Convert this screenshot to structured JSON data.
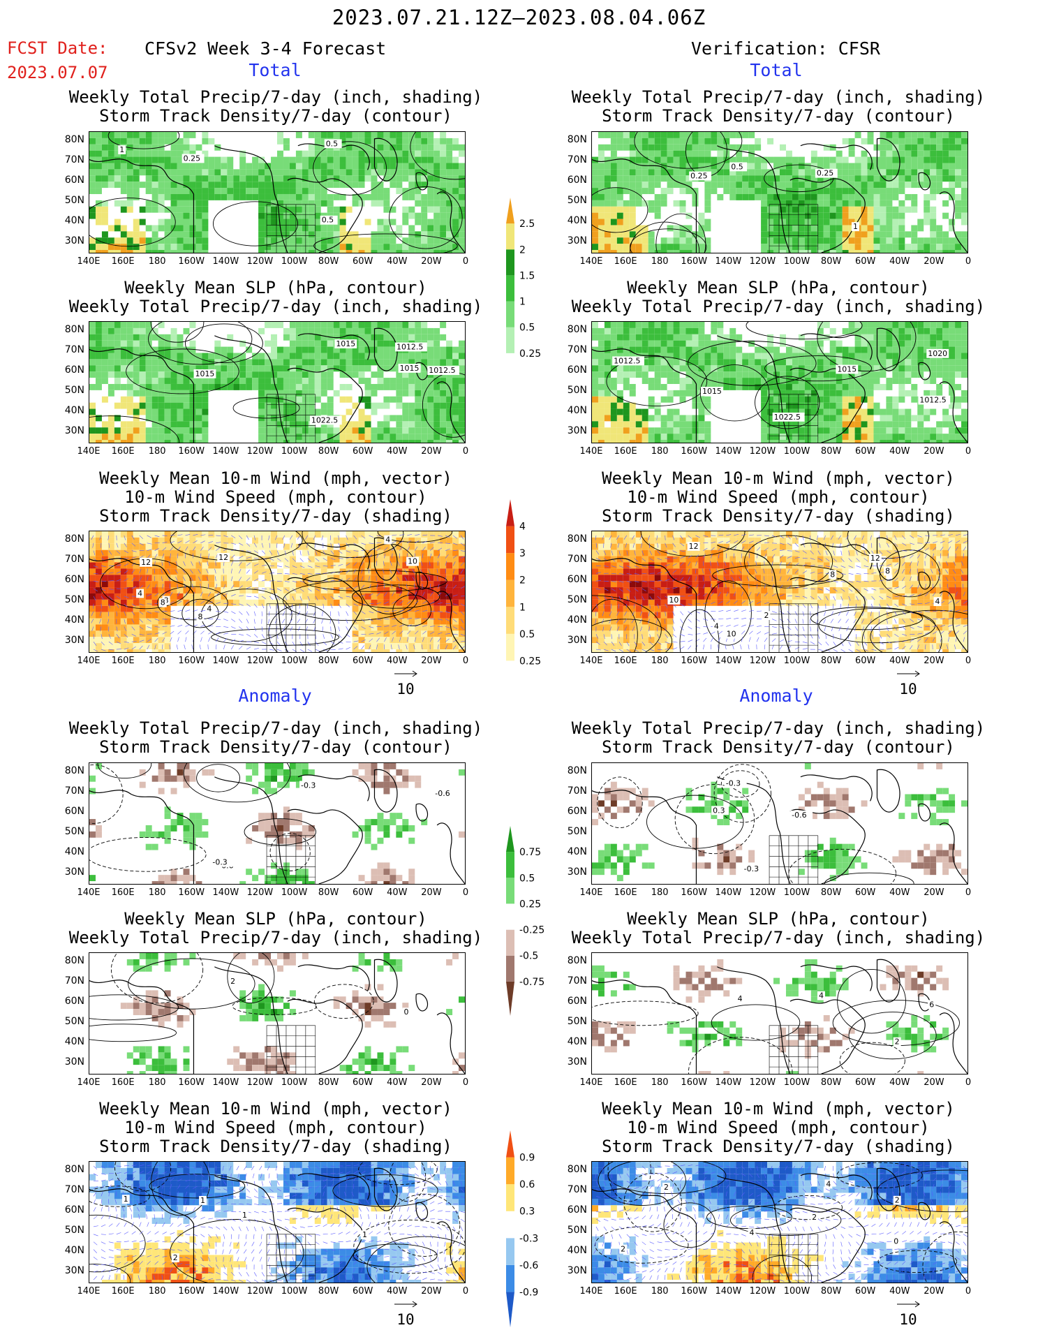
{
  "header": {
    "date_range": "2023.07.21.12Z–2023.08.04.06Z",
    "fcst_label": "FCST Date:",
    "fcst_date": "2023.07.07",
    "left_title": "CFSv2 Week 3-4 Forecast",
    "right_title": "Verification: CFSR",
    "total_label": "Total",
    "anomaly_label": "Anomaly"
  },
  "panel_titles": {
    "precip_storm": "Weekly Total Precip/7-day (inch, shading)\nStorm Track Density/7-day (contour)",
    "slp_precip": "Weekly Mean SLP (hPa, contour)\nWeekly Total Precip/7-day (inch, shading)",
    "wind_storm": "Weekly Mean 10-m Wind (mph, vector)\n10-m Wind Speed (mph, contour)\nStorm Track Density/7-day (shading)"
  },
  "axes": {
    "lat_ticks": [
      "80N",
      "70N",
      "60N",
      "50N",
      "40N",
      "30N"
    ],
    "lon_ticks": [
      "140E",
      "160E",
      "180",
      "160W",
      "140W",
      "120W",
      "100W",
      "80W",
      "60W",
      "40W",
      "20W",
      "0"
    ]
  },
  "wind_ref_label": "10",
  "colors": {
    "precip": [
      "#b4f0b4",
      "#78dc78",
      "#3cbe3c",
      "#1e961e",
      "#f0e678",
      "#f0a01e",
      "#e03c1e"
    ],
    "storm": [
      "#fff5b4",
      "#ffdc78",
      "#ffb43c",
      "#ff8c14",
      "#f05014",
      "#c81e14",
      "#8c0a0a"
    ],
    "anom_precip": [
      "#6e3c28",
      "#a0786e",
      "#dcbeb4",
      "#ffffff",
      "#78dc78",
      "#3cbe3c",
      "#1e961e"
    ],
    "anom_storm": [
      "#1e5ac8",
      "#3c8ce6",
      "#96c8f0",
      "#ffffff",
      "#ffe678",
      "#ffaa28",
      "#f05014"
    ]
  },
  "chart_data": [
    {
      "id": "row1-left",
      "type": "map",
      "title": "Weekly Total Precip/7-day (inch, shading) / Storm Track Density/7-day (contour)",
      "contour_labels": [
        "0.25",
        "0.5",
        "1",
        "0.5"
      ],
      "colorbar": {
        "levels": [
          "0.25",
          "0.5",
          "1",
          "1.5",
          "2",
          "2.5"
        ]
      }
    },
    {
      "id": "row1-right",
      "type": "map",
      "title": "Weekly Total Precip/7-day (inch, shading) / Storm Track Density/7-day (contour)",
      "contour_labels": [
        "0.25",
        "0.25",
        "0.5",
        "1"
      ]
    },
    {
      "id": "row2-left",
      "type": "map",
      "title": "Weekly Mean SLP (hPa, contour) / Weekly Total Precip/7-day (inch, shading)",
      "contour_labels": [
        "1015",
        "1012.5",
        "1015",
        "1012.5",
        "1015",
        "1022.5"
      ]
    },
    {
      "id": "row2-right",
      "type": "map",
      "title": "Weekly Mean SLP (hPa, contour) / Weekly Total Precip/7-day (inch, shading)",
      "contour_labels": [
        "1015",
        "1012.5",
        "1012.5",
        "1020",
        "1015",
        "1022.5"
      ]
    },
    {
      "id": "row3-left",
      "type": "map",
      "title": "Weekly Mean 10-m Wind / 10-m Wind Speed / Storm Track Density",
      "contour_labels": [
        "4",
        "8",
        "12",
        "4",
        "8",
        "10",
        "8",
        "4",
        "12"
      ],
      "colorbar": {
        "levels": [
          "0.25",
          "0.5",
          "1",
          "2",
          "3",
          "4"
        ]
      }
    },
    {
      "id": "row3-right",
      "type": "map",
      "title": "Weekly Mean 10-m Wind / 10-m Wind Speed / Storm Track Density",
      "contour_labels": [
        "4",
        "12",
        "8",
        "10",
        "4",
        "12",
        "10",
        "8",
        "2"
      ]
    },
    {
      "id": "row4-left",
      "type": "map",
      "title": "Anomaly Precip / Storm Track Density",
      "contour_labels": [
        "-0.6",
        "-0.3",
        "-0.6",
        "-0.3"
      ],
      "colorbar": {
        "levels": [
          "-0.75",
          "-0.5",
          "-0.25",
          "0.25",
          "0.5",
          "0.75"
        ]
      }
    },
    {
      "id": "row4-right",
      "type": "map",
      "title": "Anomaly Precip / Storm Track Density",
      "contour_labels": [
        "-0.3",
        "-0.6",
        "0.3",
        "-0.3"
      ]
    },
    {
      "id": "row5-left",
      "type": "map",
      "title": "Anomaly SLP / Precip",
      "contour_labels": [
        "2",
        "0"
      ]
    },
    {
      "id": "row5-right",
      "type": "map",
      "title": "Anomaly SLP / Precip",
      "contour_labels": [
        "4",
        "2",
        "6",
        "4"
      ]
    },
    {
      "id": "row6-left",
      "type": "map",
      "title": "Anomaly Wind / Wind Speed / Storm Track Density",
      "contour_labels": [
        "1",
        "2",
        "1",
        "1",
        "1"
      ],
      "colorbar": {
        "levels": [
          "-0.9",
          "-0.6",
          "-0.3",
          "0.3",
          "0.6",
          "0.9"
        ]
      }
    },
    {
      "id": "row6-right",
      "type": "map",
      "title": "Anomaly Wind / Wind Speed / Storm Track Density",
      "contour_labels": [
        "4",
        "2",
        "2",
        "0",
        "2",
        "4",
        "2"
      ]
    }
  ]
}
